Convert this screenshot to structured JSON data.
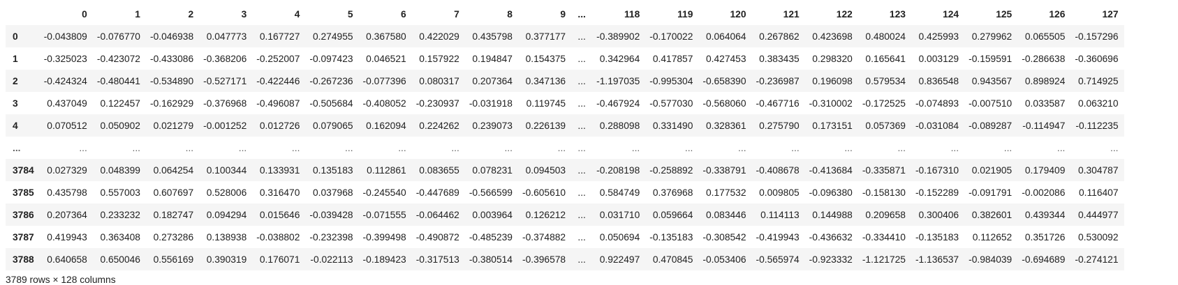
{
  "columns_left": [
    "0",
    "1",
    "2",
    "3",
    "4",
    "5",
    "6",
    "7",
    "8",
    "9"
  ],
  "columns_right": [
    "118",
    "119",
    "120",
    "121",
    "122",
    "123",
    "124",
    "125",
    "126",
    "127"
  ],
  "ellipsis": "...",
  "rows": [
    {
      "index": "0",
      "left": [
        "-0.043809",
        "-0.076770",
        "-0.046938",
        "0.047773",
        "0.167727",
        "0.274955",
        "0.367580",
        "0.422029",
        "0.435798",
        "0.377177"
      ],
      "right": [
        "-0.389902",
        "-0.170022",
        "0.064064",
        "0.267862",
        "0.423698",
        "0.480024",
        "0.425993",
        "0.279962",
        "0.065505",
        "-0.157296"
      ]
    },
    {
      "index": "1",
      "left": [
        "-0.325023",
        "-0.423072",
        "-0.433086",
        "-0.368206",
        "-0.252007",
        "-0.097423",
        "0.046521",
        "0.157922",
        "0.194847",
        "0.154375"
      ],
      "right": [
        "0.342964",
        "0.417857",
        "0.427453",
        "0.383435",
        "0.298320",
        "0.165641",
        "0.003129",
        "-0.159591",
        "-0.286638",
        "-0.360696"
      ]
    },
    {
      "index": "2",
      "left": [
        "-0.424324",
        "-0.480441",
        "-0.534890",
        "-0.527171",
        "-0.422446",
        "-0.267236",
        "-0.077396",
        "0.080317",
        "0.207364",
        "0.347136"
      ],
      "right": [
        "-1.197035",
        "-0.995304",
        "-0.658390",
        "-0.236987",
        "0.196098",
        "0.579534",
        "0.836548",
        "0.943567",
        "0.898924",
        "0.714925"
      ]
    },
    {
      "index": "3",
      "left": [
        "0.437049",
        "0.122457",
        "-0.162929",
        "-0.376968",
        "-0.496087",
        "-0.505684",
        "-0.408052",
        "-0.230937",
        "-0.031918",
        "0.119745"
      ],
      "right": [
        "-0.467924",
        "-0.577030",
        "-0.568060",
        "-0.467716",
        "-0.310002",
        "-0.172525",
        "-0.074893",
        "-0.007510",
        "0.033587",
        "0.063210"
      ]
    },
    {
      "index": "4",
      "left": [
        "0.070512",
        "0.050902",
        "0.021279",
        "-0.001252",
        "0.012726",
        "0.079065",
        "0.162094",
        "0.224262",
        "0.239073",
        "0.226139"
      ],
      "right": [
        "0.288098",
        "0.331490",
        "0.328361",
        "0.275790",
        "0.173151",
        "0.057369",
        "-0.031084",
        "-0.089287",
        "-0.114947",
        "-0.112235"
      ]
    },
    {
      "index": "...",
      "ellipsis_row": true,
      "left": [
        "...",
        "...",
        "...",
        "...",
        "...",
        "...",
        "...",
        "...",
        "...",
        "..."
      ],
      "right": [
        "...",
        "...",
        "...",
        "...",
        "...",
        "...",
        "...",
        "...",
        "...",
        "..."
      ]
    },
    {
      "index": "3784",
      "left": [
        "0.027329",
        "0.048399",
        "0.064254",
        "0.100344",
        "0.133931",
        "0.135183",
        "0.112861",
        "0.083655",
        "0.078231",
        "0.094503"
      ],
      "right": [
        "-0.208198",
        "-0.258892",
        "-0.338791",
        "-0.408678",
        "-0.413684",
        "-0.335871",
        "-0.167310",
        "0.021905",
        "0.179409",
        "0.304787"
      ]
    },
    {
      "index": "3785",
      "left": [
        "0.435798",
        "0.557003",
        "0.607697",
        "0.528006",
        "0.316470",
        "0.037968",
        "-0.245540",
        "-0.447689",
        "-0.566599",
        "-0.605610"
      ],
      "right": [
        "0.584749",
        "0.376968",
        "0.177532",
        "0.009805",
        "-0.096380",
        "-0.158130",
        "-0.152289",
        "-0.091791",
        "-0.002086",
        "0.116407"
      ]
    },
    {
      "index": "3786",
      "left": [
        "0.207364",
        "0.233232",
        "0.182747",
        "0.094294",
        "0.015646",
        "-0.039428",
        "-0.071555",
        "-0.064462",
        "0.003964",
        "0.126212"
      ],
      "right": [
        "0.031710",
        "0.059664",
        "0.083446",
        "0.114113",
        "0.144988",
        "0.209658",
        "0.300406",
        "0.382601",
        "0.439344",
        "0.444977"
      ]
    },
    {
      "index": "3787",
      "left": [
        "0.419943",
        "0.363408",
        "0.273286",
        "0.138938",
        "-0.038802",
        "-0.232398",
        "-0.399498",
        "-0.490872",
        "-0.485239",
        "-0.374882"
      ],
      "right": [
        "0.050694",
        "-0.135183",
        "-0.308542",
        "-0.419943",
        "-0.436632",
        "-0.334410",
        "-0.135183",
        "0.112652",
        "0.351726",
        "0.530092"
      ]
    },
    {
      "index": "3788",
      "left": [
        "0.640658",
        "0.650046",
        "0.556169",
        "0.390319",
        "0.176071",
        "-0.022113",
        "-0.189423",
        "-0.317513",
        "-0.380514",
        "-0.396578"
      ],
      "right": [
        "0.922497",
        "0.470845",
        "-0.053406",
        "-0.565974",
        "-0.923332",
        "-1.121725",
        "-1.136537",
        "-0.984039",
        "-0.694689",
        "-0.274121"
      ]
    }
  ],
  "shape_text": "3789 rows × 128 columns"
}
